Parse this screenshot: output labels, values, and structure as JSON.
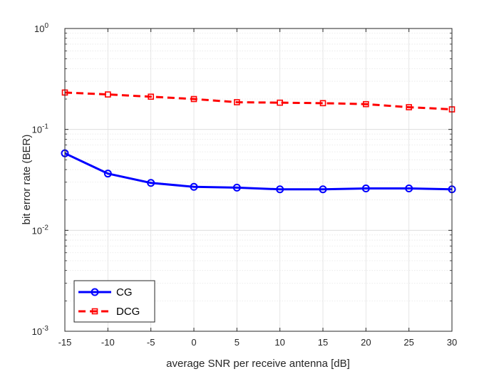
{
  "chart_data": {
    "type": "line",
    "xlabel": "average SNR per receive antenna [dB]",
    "ylabel": "bit error rate (BER)",
    "yscale": "log",
    "xlim": [
      -15,
      30
    ],
    "ylim": [
      0.001,
      1
    ],
    "grid": true,
    "minor_grid": true,
    "legend_position": "bottom-left",
    "x": [
      -15,
      -10,
      -5,
      0,
      5,
      10,
      15,
      20,
      25,
      30
    ],
    "x_ticks": [
      "-15",
      "-10",
      "-5",
      "0",
      "5",
      "10",
      "15",
      "20",
      "25",
      "30"
    ],
    "y_ticks": [
      {
        "base": "10",
        "exp": "-3",
        "value": 0.001
      },
      {
        "base": "10",
        "exp": "-2",
        "value": 0.01
      },
      {
        "base": "10",
        "exp": "-1",
        "value": 0.1
      },
      {
        "base": "10",
        "exp": "0",
        "value": 1
      }
    ],
    "series": [
      {
        "name": "CG",
        "color": "#0000ff",
        "line_style": "solid",
        "marker": "circle",
        "values": [
          0.058,
          0.0365,
          0.0295,
          0.027,
          0.0265,
          0.0255,
          0.0255,
          0.026,
          0.026,
          0.0255
        ]
      },
      {
        "name": "DCG",
        "color": "#ff0000",
        "line_style": "dashed",
        "marker": "square",
        "values": [
          0.232,
          0.222,
          0.211,
          0.2,
          0.186,
          0.184,
          0.182,
          0.178,
          0.166,
          0.158
        ]
      }
    ]
  }
}
